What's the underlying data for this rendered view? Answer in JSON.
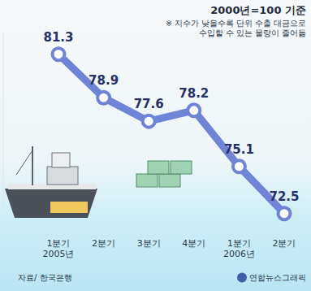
{
  "chart_data": {
    "type": "line",
    "title": "2000년=100 기준",
    "note": [
      "※ 지수가 낮을수록 단위 수출 대금으로",
      "수입할 수 있는 물량이 줄어듦"
    ],
    "categories": [
      "1분기\n2005년",
      "2분기",
      "3분기",
      "4분기",
      "1분기\n2006년",
      "2분기"
    ],
    "values": [
      81.3,
      78.9,
      77.6,
      78.2,
      75.1,
      72.5
    ],
    "color": "#6f84d6",
    "marker": "circle",
    "ylim": [
      71.5,
      82.5
    ],
    "data_labels": true,
    "tick_labels": "x",
    "grid": false,
    "source": "자료/ 한국은행",
    "credit": "연합뉴스그래픽"
  }
}
